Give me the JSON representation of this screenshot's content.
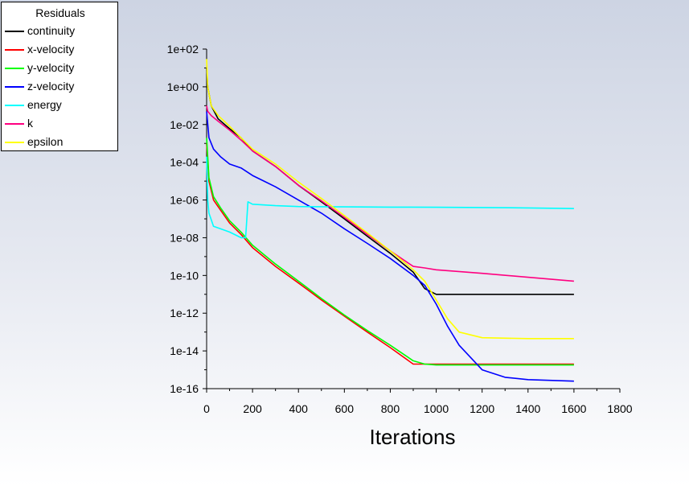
{
  "chart_data": {
    "type": "line",
    "title": "",
    "xlabel": "Iterations",
    "ylabel": "",
    "xlim": [
      0,
      1800
    ],
    "ylim": [
      1e-16,
      100
    ],
    "y_scale": "log",
    "x_ticks": [
      0,
      200,
      400,
      600,
      800,
      1000,
      1200,
      1400,
      1600,
      1800
    ],
    "x_tick_labels": [
      "0",
      "200",
      "400",
      "600",
      "800",
      "1000",
      "1200",
      "1400",
      "1600",
      "1800"
    ],
    "y_ticks": [
      100.0,
      1.0,
      0.01,
      0.0001,
      1e-06,
      1e-08,
      1e-10,
      1e-12,
      1e-14,
      1e-16
    ],
    "y_tick_labels": [
      "1e+02",
      "1e+00",
      "1e-02",
      "1e-04",
      "1e-06",
      "1e-08",
      "1e-10",
      "1e-12",
      "1e-14",
      "1e-16"
    ],
    "grid": false,
    "legend": {
      "title": "Residuals",
      "placement": "top-left"
    },
    "series": [
      {
        "name": "continuity",
        "color": "#000000",
        "x": [
          0,
          5,
          20,
          50,
          100,
          150,
          200,
          300,
          400,
          500,
          600,
          700,
          800,
          900,
          950,
          1000,
          1200,
          1400,
          1600
        ],
        "y": [
          10,
          1,
          0.1,
          0.02,
          0.006,
          0.002,
          0.0004,
          6e-05,
          6e-06,
          8e-07,
          1e-07,
          1.2e-08,
          1.5e-09,
          1.5e-10,
          2e-11,
          1e-11,
          1e-11,
          1e-11,
          1e-11
        ]
      },
      {
        "name": "x-velocity",
        "color": "#ff0000",
        "x": [
          0,
          10,
          30,
          60,
          100,
          150,
          200,
          300,
          400,
          500,
          600,
          700,
          800,
          900,
          950,
          1000,
          1200,
          1400,
          1600
        ],
        "y": [
          0.001,
          1e-05,
          1e-06,
          3e-07,
          6e-08,
          1.5e-08,
          3e-09,
          3e-10,
          4e-11,
          5e-12,
          7e-13,
          1e-13,
          1.5e-14,
          2e-15,
          2e-15,
          2e-15,
          2e-15,
          2e-15,
          2e-15
        ]
      },
      {
        "name": "y-velocity",
        "color": "#00ff00",
        "x": [
          0,
          10,
          30,
          60,
          100,
          150,
          200,
          300,
          400,
          500,
          600,
          700,
          800,
          900,
          950,
          1000,
          1200,
          1400,
          1600
        ],
        "y": [
          0.002,
          1.5e-05,
          1.5e-06,
          4e-07,
          8e-08,
          2e-08,
          4e-09,
          4e-10,
          5e-11,
          6e-12,
          8e-13,
          1.2e-13,
          2e-14,
          3e-15,
          2e-15,
          1.8e-15,
          1.8e-15,
          1.8e-15,
          1.8e-15
        ]
      },
      {
        "name": "z-velocity",
        "color": "#0000ff",
        "x": [
          0,
          10,
          30,
          60,
          100,
          150,
          200,
          250,
          300,
          400,
          500,
          600,
          700,
          800,
          900,
          950,
          1000,
          1050,
          1100,
          1200,
          1300,
          1400,
          1600
        ],
        "y": [
          0.05,
          0.002,
          0.0005,
          0.0002,
          8e-05,
          5e-05,
          2e-05,
          1e-05,
          5e-06,
          1e-06,
          2e-07,
          3e-08,
          5e-09,
          8e-10,
          1e-10,
          3e-11,
          3e-12,
          2e-13,
          2e-14,
          1e-15,
          4e-16,
          3e-16,
          2.5e-16
        ]
      },
      {
        "name": "energy",
        "color": "#00ffff",
        "x": [
          0,
          5,
          10,
          30,
          60,
          100,
          150,
          170,
          180,
          200,
          300,
          400,
          600,
          800,
          1000,
          1200,
          1400,
          1600
        ],
        "y": [
          0.0002,
          1e-06,
          2e-07,
          4e-08,
          3e-08,
          2e-08,
          1e-08,
          1e-08,
          8e-07,
          6e-07,
          5e-07,
          4.5e-07,
          4.3e-07,
          4.2e-07,
          4.1e-07,
          4e-07,
          3.8e-07,
          3.5e-07
        ]
      },
      {
        "name": "k",
        "color": "#ff0080",
        "x": [
          0,
          5,
          20,
          50,
          100,
          150,
          200,
          300,
          400,
          500,
          600,
          700,
          800,
          900,
          950,
          1000,
          1200,
          1400,
          1600
        ],
        "y": [
          0.1,
          0.05,
          0.03,
          0.015,
          0.005,
          0.0015,
          0.0004,
          6e-05,
          6e-06,
          9e-07,
          1.2e-07,
          1.5e-08,
          2e-09,
          3e-10,
          2.5e-10,
          2e-10,
          1.3e-10,
          8e-11,
          5e-11
        ]
      },
      {
        "name": "epsilon",
        "color": "#ffff00",
        "x": [
          0,
          5,
          20,
          50,
          100,
          150,
          200,
          300,
          400,
          500,
          600,
          700,
          800,
          900,
          950,
          1000,
          1050,
          1100,
          1200,
          1400,
          1600
        ],
        "y": [
          30,
          1,
          0.1,
          0.03,
          0.008,
          0.002,
          0.0005,
          8e-05,
          9e-06,
          1.2e-06,
          1.5e-07,
          1.8e-08,
          2e-09,
          2e-10,
          5e-11,
          5e-12,
          5e-13,
          1e-13,
          5e-14,
          4.5e-14,
          4.5e-14
        ]
      }
    ]
  }
}
